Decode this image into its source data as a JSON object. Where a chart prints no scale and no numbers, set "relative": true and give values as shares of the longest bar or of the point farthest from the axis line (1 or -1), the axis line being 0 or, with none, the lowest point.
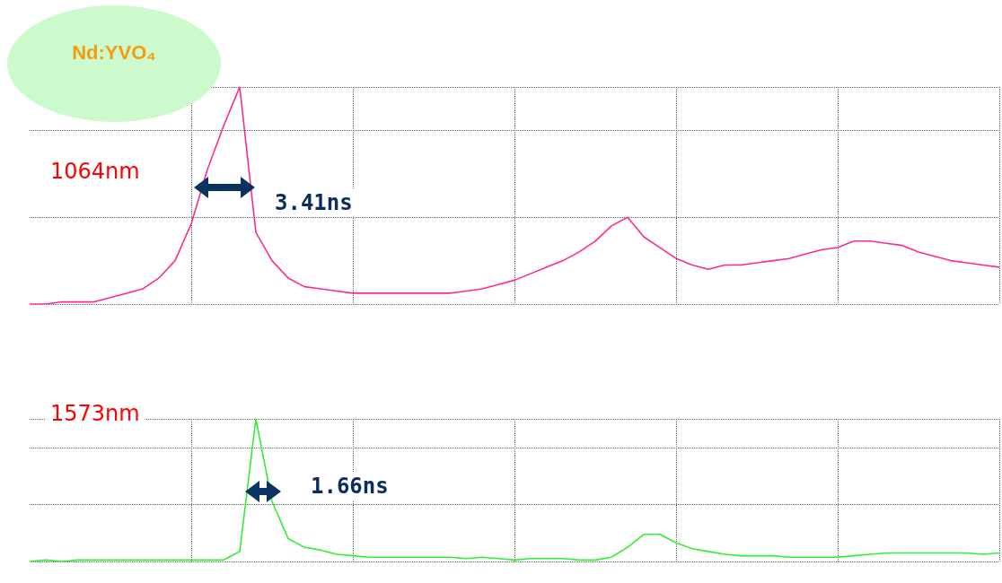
{
  "chart_data": [
    {
      "type": "line",
      "title": "Nd:YVO₄",
      "relative": true,
      "grid": true,
      "tick_labels": false,
      "annotations": [
        "1064nm",
        "3.41ns"
      ],
      "categories": [
        null,
        null,
        null,
        null,
        null,
        null,
        null,
        null,
        null,
        null,
        null,
        null,
        null,
        null,
        null,
        null,
        null,
        null,
        null,
        null,
        null,
        null,
        null,
        null,
        null,
        null,
        null,
        null,
        null,
        null,
        null,
        null,
        null,
        null,
        null,
        null,
        null,
        null,
        null,
        null,
        null,
        null,
        null,
        null,
        null,
        null,
        null,
        null,
        null,
        null,
        null,
        null,
        null,
        null,
        null,
        null,
        null,
        null,
        null,
        null,
        null
      ],
      "series": [
        {
          "color": "#ff2a8c",
          "values": [
            0,
            0,
            0.01,
            0.01,
            0.01,
            0.03,
            0.05,
            0.07,
            0.12,
            0.2,
            0.37,
            0.62,
            0.82,
            1,
            0.33,
            0.2,
            0.12,
            0.08,
            0.07,
            0.06,
            0.05,
            0.05,
            0.05,
            0.05,
            0.05,
            0.05,
            0.05,
            0.06,
            0.07,
            0.09,
            0.11,
            0.14,
            0.17,
            0.2,
            0.24,
            0.29,
            0.36,
            0.4,
            0.31,
            0.26,
            0.21,
            0.18,
            0.16,
            0.18,
            0.18,
            0.19,
            0.2,
            0.21,
            0.23,
            0.25,
            0.26,
            0.29,
            0.29,
            0.28,
            0.27,
            0.24,
            0.22,
            0.2,
            0.19,
            0.18,
            0.17
          ]
        }
      ]
    },
    {
      "type": "line",
      "relative": true,
      "grid": true,
      "tick_labels": false,
      "annotations": [
        "1573nm",
        "1.66ns"
      ],
      "categories": [
        null,
        null,
        null,
        null,
        null,
        null,
        null,
        null,
        null,
        null,
        null,
        null,
        null,
        null,
        null,
        null,
        null,
        null,
        null,
        null,
        null,
        null,
        null,
        null,
        null,
        null,
        null,
        null,
        null,
        null,
        null,
        null,
        null,
        null,
        null,
        null,
        null,
        null,
        null,
        null,
        null,
        null,
        null,
        null,
        null,
        null,
        null,
        null,
        null,
        null,
        null,
        null,
        null,
        null,
        null,
        null,
        null,
        null,
        null,
        null,
        null
      ],
      "series": [
        {
          "color": "#33ee33",
          "values": [
            0,
            0.01,
            0,
            0.01,
            0.01,
            0.01,
            0.01,
            0.01,
            0.01,
            0.01,
            0.01,
            0.01,
            0.01,
            0.07,
            1,
            0.42,
            0.16,
            0.1,
            0.08,
            0.05,
            0.04,
            0.03,
            0.03,
            0.03,
            0.03,
            0.03,
            0.03,
            0.02,
            0.03,
            0.02,
            0.01,
            0.02,
            0.02,
            0.02,
            0.01,
            0.01,
            0.03,
            0.1,
            0.19,
            0.19,
            0.13,
            0.09,
            0.07,
            0.05,
            0.04,
            0.04,
            0.04,
            0.03,
            0.03,
            0.03,
            0.03,
            0.04,
            0.05,
            0.06,
            0.06,
            0.06,
            0.06,
            0.06,
            0.06,
            0.05,
            0.06
          ]
        }
      ]
    }
  ]
}
